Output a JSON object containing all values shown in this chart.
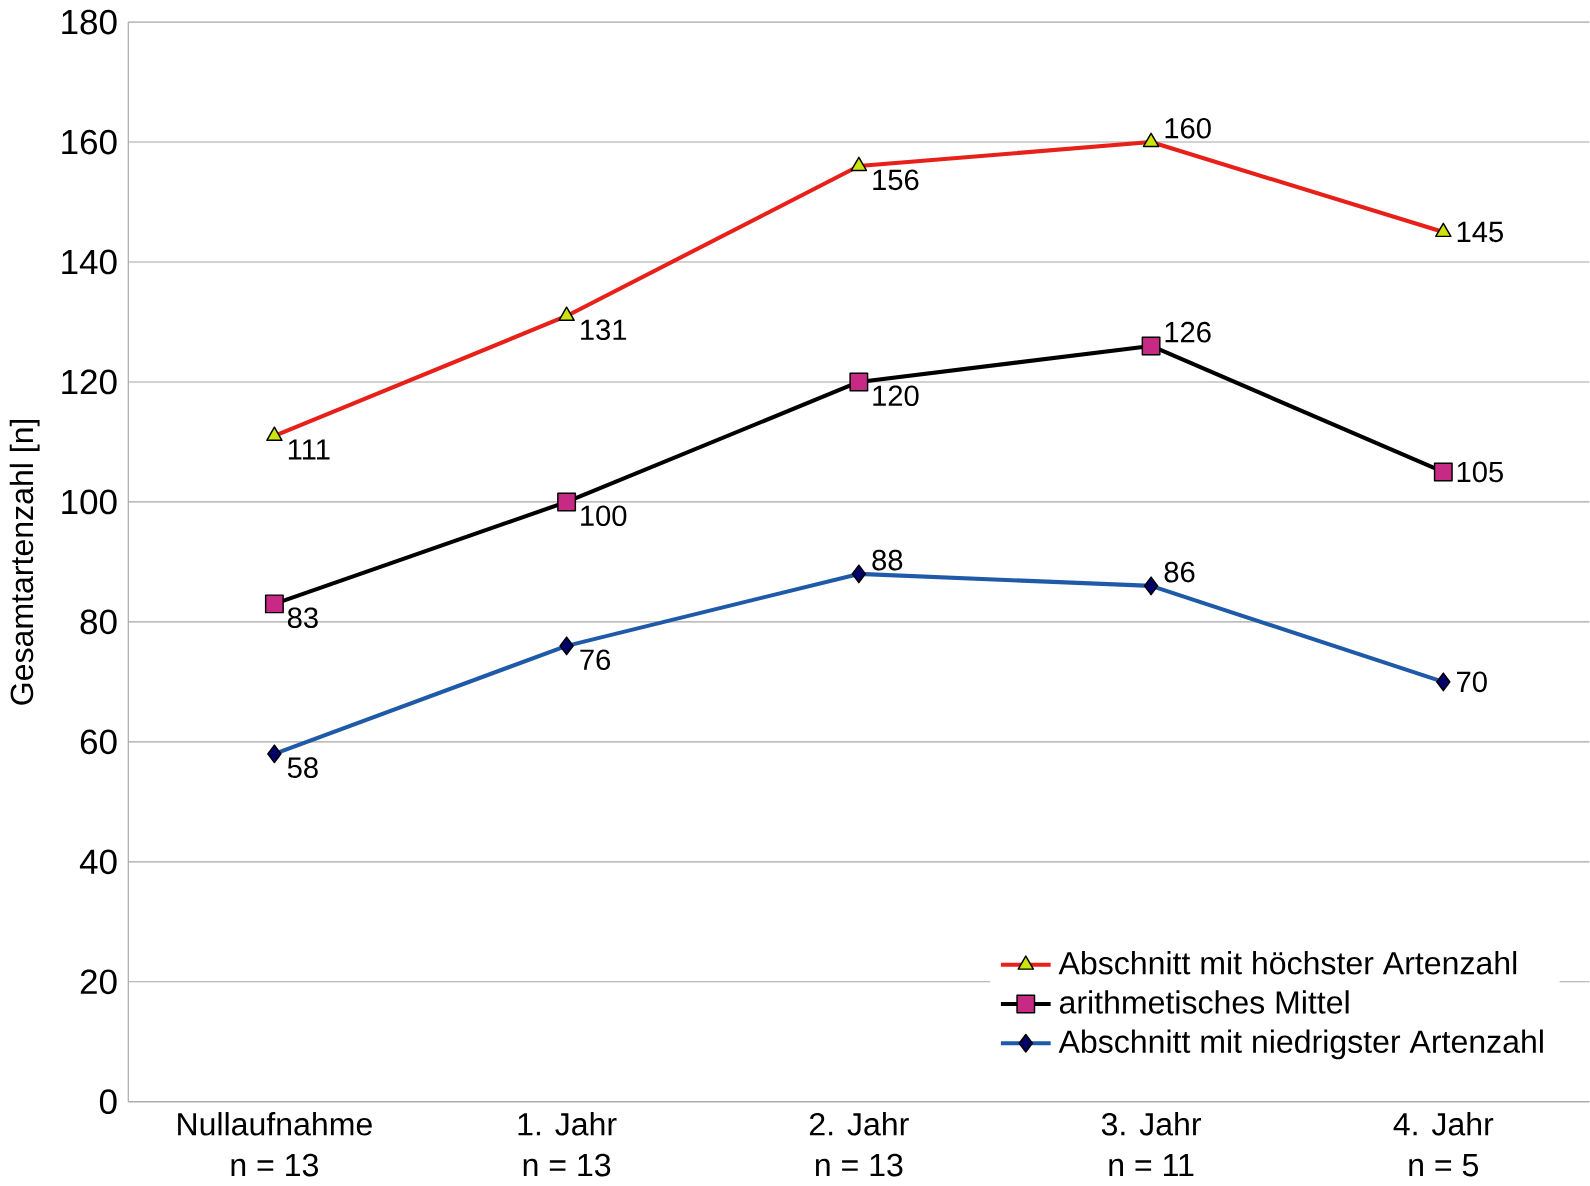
{
  "chart_data": {
    "type": "line",
    "ylabel": "Gesamtartenzahl [n]",
    "categories": [
      "Nullaufnahme\nn = 13",
      "1. Jahr\nn = 13",
      "2. Jahr\nn = 13",
      "3. Jahr\nn = 11",
      "4. Jahr\nn = 5"
    ],
    "series": [
      {
        "name": "Abschnitt mit höchster Artenzahl",
        "color": "#e8201a",
        "marker": "triangle",
        "values": [
          111,
          131,
          156,
          160,
          145
        ]
      },
      {
        "name": "arithmetisches Mittel",
        "color": "#000000",
        "marker": "square",
        "values": [
          83,
          100,
          120,
          126,
          105
        ]
      },
      {
        "name": "Abschnitt mit niedrigster Artenzahl",
        "color": "#1f5aa8",
        "marker": "diamond",
        "values": [
          58,
          76,
          88,
          86,
          70
        ]
      }
    ],
    "ylim": [
      0,
      180
    ],
    "yticks": [
      0,
      20,
      40,
      60,
      80,
      100,
      120,
      140,
      160,
      180
    ],
    "grid": "y",
    "legend": "bottom right",
    "data_labels": true
  }
}
